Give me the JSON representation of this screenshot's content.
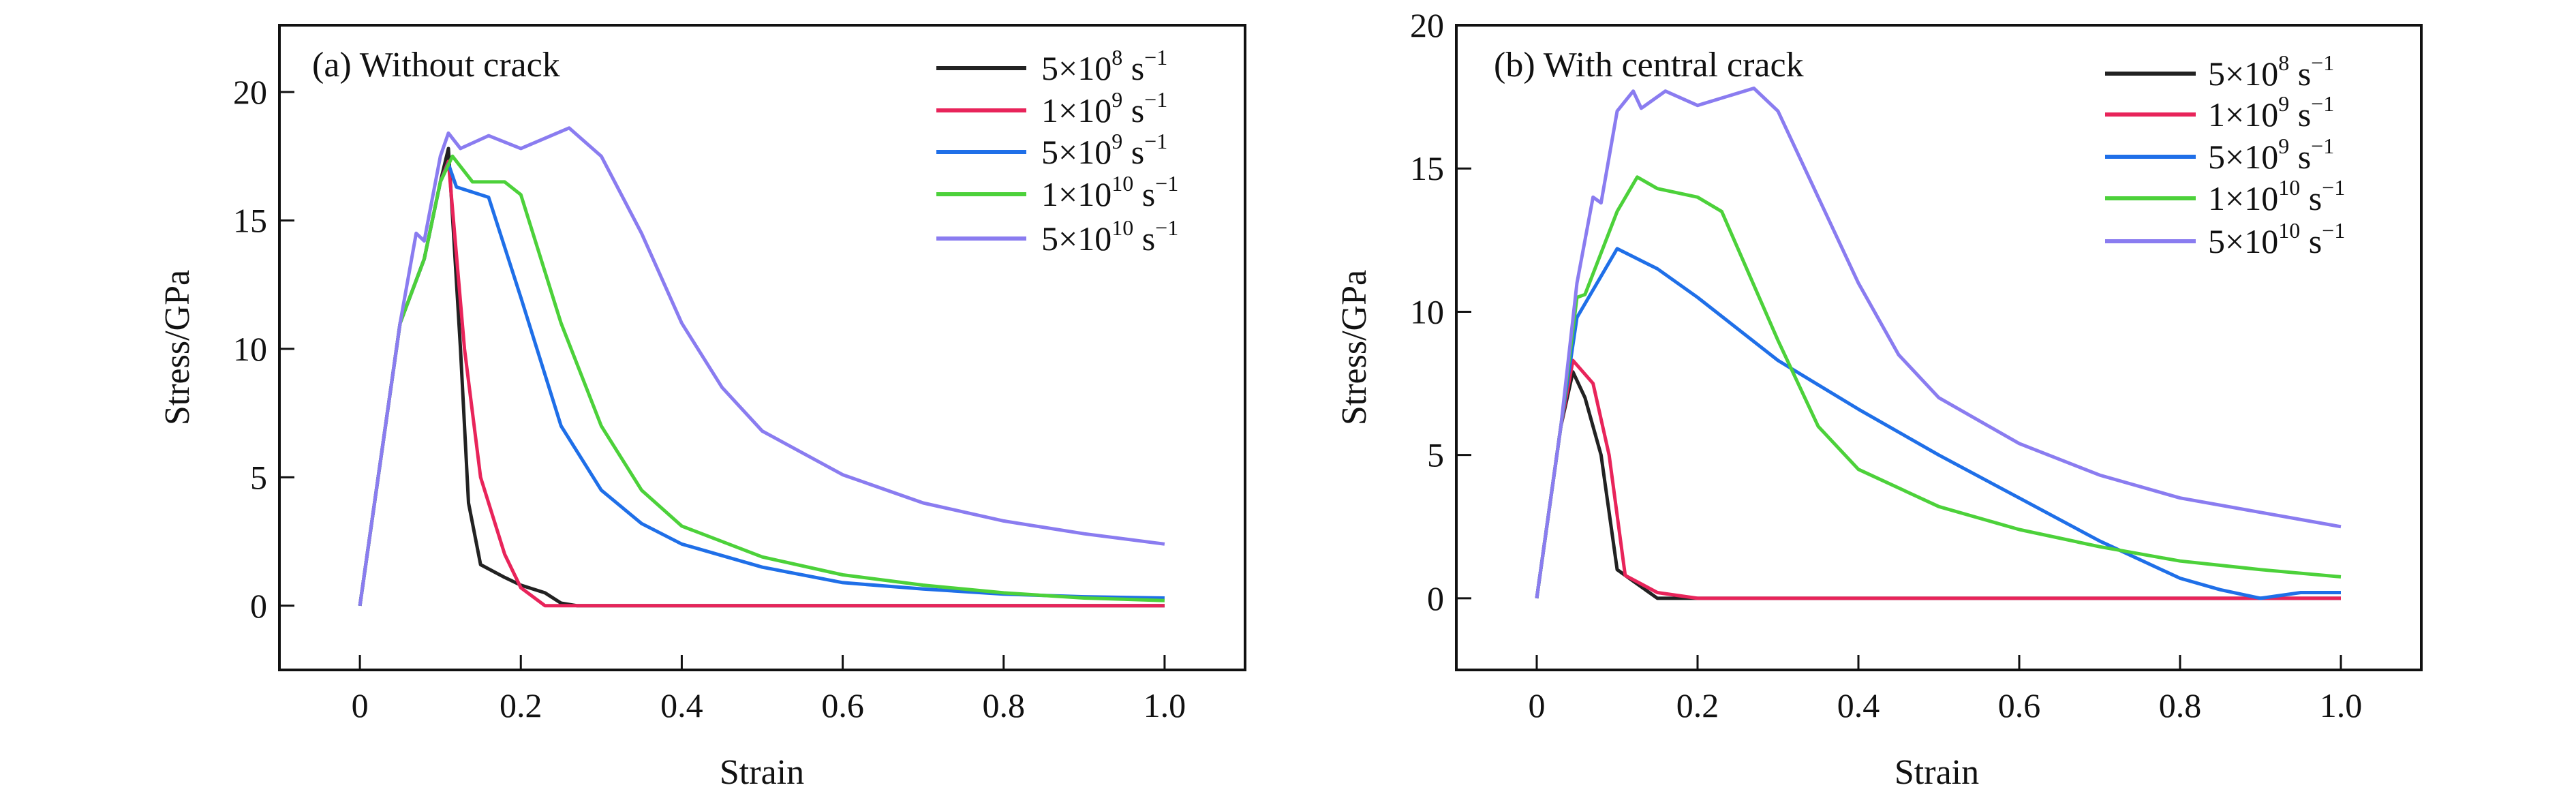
{
  "chart_data": [
    {
      "type": "line",
      "title": "(a) Without crack",
      "xlabel": "Strain",
      "ylabel": "Stress/GPa",
      "xlim": [
        -0.1,
        1.1
      ],
      "ylim": [
        -2.5,
        22.6
      ],
      "xticks": [
        0,
        0.2,
        0.4,
        0.6,
        0.8,
        1.0
      ],
      "xtick_labels": [
        "0",
        "0.2",
        "0.4",
        "0.6",
        "0.8",
        "1.0"
      ],
      "yticks": [
        0,
        5,
        10,
        15,
        20
      ],
      "ytick_labels": [
        "0",
        "5",
        "10",
        "15",
        "20"
      ],
      "grid": false,
      "legend_position": "top-right",
      "series": [
        {
          "name": "5×10^8 s^-1",
          "mantissa": "5×10",
          "exp": "8",
          "unit": " s",
          "unit_exp": "−1",
          "color": "#222222",
          "x": [
            0,
            0.05,
            0.08,
            0.1,
            0.11,
            0.125,
            0.135,
            0.15,
            0.18,
            0.2,
            0.23,
            0.25,
            0.27,
            1.0
          ],
          "y": [
            0,
            11,
            13.5,
            16.5,
            17.8,
            10,
            4,
            1.6,
            1.1,
            0.8,
            0.5,
            0.1,
            0,
            0
          ]
        },
        {
          "name": "1×10^9 s^-1",
          "mantissa": "1×10",
          "exp": "9",
          "unit": " s",
          "unit_exp": "−1",
          "color": "#e8245a",
          "x": [
            0,
            0.05,
            0.08,
            0.1,
            0.11,
            0.13,
            0.15,
            0.18,
            0.2,
            0.23,
            1.0
          ],
          "y": [
            0,
            11,
            13.5,
            16.5,
            17.3,
            10,
            5,
            2,
            0.7,
            0,
            0
          ]
        },
        {
          "name": "5×10^9 s^-1",
          "mantissa": "5×10",
          "exp": "9",
          "unit": " s",
          "unit_exp": "−1",
          "color": "#1f6fe8",
          "x": [
            0,
            0.05,
            0.08,
            0.1,
            0.11,
            0.12,
            0.16,
            0.2,
            0.25,
            0.3,
            0.35,
            0.4,
            0.5,
            0.6,
            0.7,
            0.8,
            0.9,
            1.0
          ],
          "y": [
            0,
            11,
            13.5,
            16.5,
            17.2,
            16.3,
            15.9,
            12,
            7,
            4.5,
            3.2,
            2.4,
            1.5,
            0.9,
            0.65,
            0.45,
            0.35,
            0.3
          ]
        },
        {
          "name": "1×10^10 s^-1",
          "mantissa": "1×10",
          "exp": "10",
          "unit": " s",
          "unit_exp": "−1",
          "color": "#4cd13a",
          "x": [
            0,
            0.05,
            0.08,
            0.1,
            0.115,
            0.14,
            0.18,
            0.2,
            0.25,
            0.3,
            0.35,
            0.4,
            0.5,
            0.6,
            0.7,
            0.8,
            0.9,
            1.0
          ],
          "y": [
            0,
            11,
            13.5,
            16.5,
            17.5,
            16.5,
            16.5,
            16,
            11,
            7,
            4.5,
            3.1,
            1.9,
            1.2,
            0.8,
            0.5,
            0.3,
            0.2
          ]
        },
        {
          "name": "5×10^10 s^-1",
          "mantissa": "5×10",
          "exp": "10",
          "unit": " s",
          "unit_exp": "−1",
          "color": "#8a7cf0",
          "x": [
            0,
            0.05,
            0.07,
            0.08,
            0.1,
            0.11,
            0.125,
            0.16,
            0.2,
            0.26,
            0.3,
            0.35,
            0.4,
            0.45,
            0.5,
            0.6,
            0.7,
            0.8,
            0.9,
            1.0
          ],
          "y": [
            0,
            11,
            14.5,
            14.2,
            17.5,
            18.4,
            17.8,
            18.3,
            17.8,
            18.6,
            17.5,
            14.5,
            11,
            8.5,
            6.8,
            5.1,
            4.0,
            3.3,
            2.8,
            2.4
          ]
        }
      ]
    },
    {
      "type": "line",
      "title": "(b) With central crack",
      "xlabel": "Strain",
      "ylabel": "Stress/GPa",
      "xlim": [
        -0.1,
        1.1
      ],
      "ylim": [
        -2.5,
        20
      ],
      "xticks": [
        0,
        0.2,
        0.4,
        0.6,
        0.8,
        1.0
      ],
      "xtick_labels": [
        "0",
        "0.2",
        "0.4",
        "0.6",
        "0.8",
        "1.0"
      ],
      "yticks": [
        0,
        5,
        10,
        15,
        20
      ],
      "ytick_labels": [
        "0",
        "5",
        "10",
        "15",
        "20"
      ],
      "grid": false,
      "legend_position": "top-right",
      "series": [
        {
          "name": "5×10^8 s^-1",
          "mantissa": "5×10",
          "exp": "8",
          "unit": " s",
          "unit_exp": "−1",
          "color": "#222222",
          "x": [
            0,
            0.03,
            0.045,
            0.06,
            0.08,
            0.1,
            0.12,
            0.15,
            1.0
          ],
          "y": [
            0,
            6,
            7.9,
            7,
            5,
            1,
            0.6,
            0,
            0
          ]
        },
        {
          "name": "1×10^9 s^-1",
          "mantissa": "1×10",
          "exp": "9",
          "unit": " s",
          "unit_exp": "−1",
          "color": "#e8245a",
          "x": [
            0,
            0.03,
            0.045,
            0.07,
            0.09,
            0.11,
            0.15,
            0.2,
            1.0
          ],
          "y": [
            0,
            6,
            8.3,
            7.5,
            5,
            0.8,
            0.2,
            0,
            0
          ]
        },
        {
          "name": "5×10^9 s^-1",
          "mantissa": "5×10",
          "exp": "9",
          "unit": " s",
          "unit_exp": "−1",
          "color": "#1f6fe8",
          "x": [
            0,
            0.03,
            0.05,
            0.1,
            0.15,
            0.2,
            0.3,
            0.4,
            0.5,
            0.6,
            0.7,
            0.8,
            0.85,
            0.9,
            0.95,
            1.0
          ],
          "y": [
            0,
            6,
            9.8,
            12.2,
            11.5,
            10.5,
            8.3,
            6.6,
            5.0,
            3.5,
            2.0,
            0.7,
            0.3,
            0,
            0.2,
            0.2
          ]
        },
        {
          "name": "1×10^10 s^-1",
          "mantissa": "1×10",
          "exp": "10",
          "unit": " s",
          "unit_exp": "−1",
          "color": "#4cd13a",
          "x": [
            0,
            0.03,
            0.05,
            0.06,
            0.1,
            0.125,
            0.15,
            0.2,
            0.23,
            0.3,
            0.35,
            0.4,
            0.5,
            0.6,
            0.7,
            0.8,
            0.9,
            1.0
          ],
          "y": [
            0,
            6,
            10.5,
            10.6,
            13.5,
            14.7,
            14.3,
            14,
            13.5,
            9,
            6,
            4.5,
            3.2,
            2.4,
            1.8,
            1.3,
            1.0,
            0.75
          ]
        },
        {
          "name": "5×10^10 s^-1",
          "mantissa": "5×10",
          "exp": "10",
          "unit": " s",
          "unit_exp": "−1",
          "color": "#8a7cf0",
          "x": [
            0,
            0.03,
            0.05,
            0.07,
            0.08,
            0.1,
            0.12,
            0.13,
            0.16,
            0.2,
            0.27,
            0.3,
            0.35,
            0.4,
            0.45,
            0.5,
            0.6,
            0.7,
            0.8,
            0.9,
            1.0
          ],
          "y": [
            0,
            6,
            11,
            14,
            13.8,
            17,
            17.7,
            17.1,
            17.7,
            17.2,
            17.8,
            17,
            14,
            11,
            8.5,
            7,
            5.4,
            4.3,
            3.5,
            3.0,
            2.5
          ]
        }
      ]
    }
  ]
}
